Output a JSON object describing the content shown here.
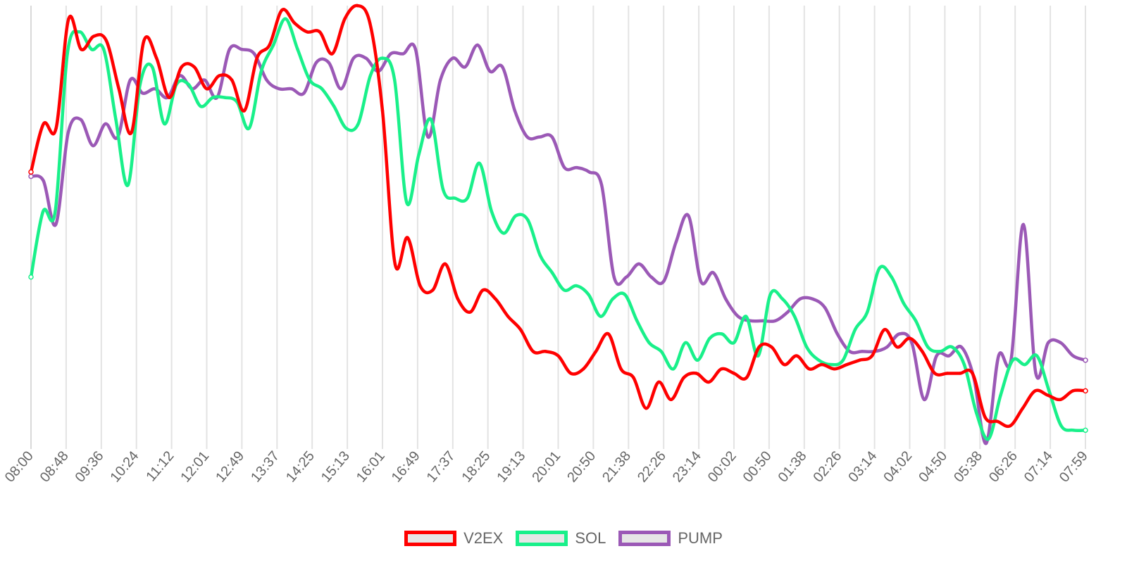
{
  "chart_data": {
    "type": "line",
    "x_ticks": [
      "08:00",
      "08:48",
      "09:36",
      "10:24",
      "11:12",
      "12:01",
      "12:49",
      "13:37",
      "14:25",
      "15:13",
      "16:01",
      "16:49",
      "17:37",
      "18:25",
      "19:13",
      "20:01",
      "20:50",
      "21:38",
      "22:26",
      "23:14",
      "00:02",
      "00:50",
      "01:38",
      "02:26",
      "03:14",
      "04:02",
      "04:50",
      "05:38",
      "06:26",
      "07:14",
      "07:59"
    ],
    "ylim": [
      0,
      100
    ],
    "grid_x": true,
    "grid_y": false,
    "legend_position": "bottom",
    "series": [
      {
        "name": "V2EX",
        "color": "#ff0000",
        "values": [
          62,
          73,
          72,
          97,
          90,
          93,
          92,
          81,
          71,
          92,
          88,
          79,
          86,
          86,
          81,
          84,
          83,
          76,
          88,
          91,
          99,
          96,
          94,
          94,
          89,
          97,
          100,
          96,
          76,
          41,
          47,
          36,
          35,
          41,
          33,
          30,
          35,
          33,
          29,
          26,
          21,
          21,
          20,
          16,
          17,
          21,
          25,
          17,
          15,
          8,
          14,
          10,
          15,
          16,
          14,
          17,
          16,
          15,
          22,
          22,
          18,
          20,
          17,
          18,
          17,
          18,
          19,
          20,
          26,
          22,
          24,
          21,
          16,
          16,
          16,
          16,
          6,
          5,
          4,
          8,
          12,
          11,
          10,
          12,
          12
        ]
      },
      {
        "name": "SOL",
        "color": "#19f08a",
        "values": [
          38,
          53,
          53,
          89,
          94,
          90,
          90,
          74,
          59,
          82,
          86,
          73,
          82,
          82,
          77,
          79,
          79,
          78,
          72,
          85,
          91,
          97,
          90,
          83,
          81,
          77,
          72,
          73,
          84,
          88,
          83,
          55,
          66,
          74,
          58,
          56,
          56,
          64,
          53,
          48,
          52,
          51,
          43,
          39,
          35,
          36,
          34,
          29,
          33,
          34,
          28,
          23,
          21,
          17,
          23,
          19,
          24,
          25,
          23,
          29,
          20,
          34,
          33,
          29,
          22,
          19,
          18,
          19,
          26,
          30,
          40,
          38,
          32,
          28,
          22,
          21,
          22,
          18,
          7,
          1,
          11,
          19,
          18,
          20,
          12,
          4,
          3,
          3
        ]
      },
      {
        "name": "PUMP",
        "color": "#9b59b6",
        "values": [
          61,
          60,
          50,
          71,
          74,
          68,
          73,
          70,
          83,
          80,
          81,
          79,
          84,
          81,
          83,
          79,
          90,
          90,
          89,
          83,
          81,
          81,
          80,
          87,
          87,
          81,
          88,
          88,
          85,
          89,
          89,
          90,
          70,
          83,
          88,
          86,
          91,
          85,
          86,
          76,
          70,
          70,
          70,
          63,
          63,
          62,
          59,
          38,
          38,
          41,
          38,
          37,
          46,
          52,
          37,
          39,
          33,
          29,
          28,
          28,
          28,
          30,
          33,
          33,
          31,
          25,
          21,
          21,
          21,
          22,
          25,
          23,
          10,
          20,
          20,
          22,
          15,
          0,
          20,
          19,
          50,
          16,
          23,
          23,
          20,
          19
        ]
      }
    ]
  }
}
